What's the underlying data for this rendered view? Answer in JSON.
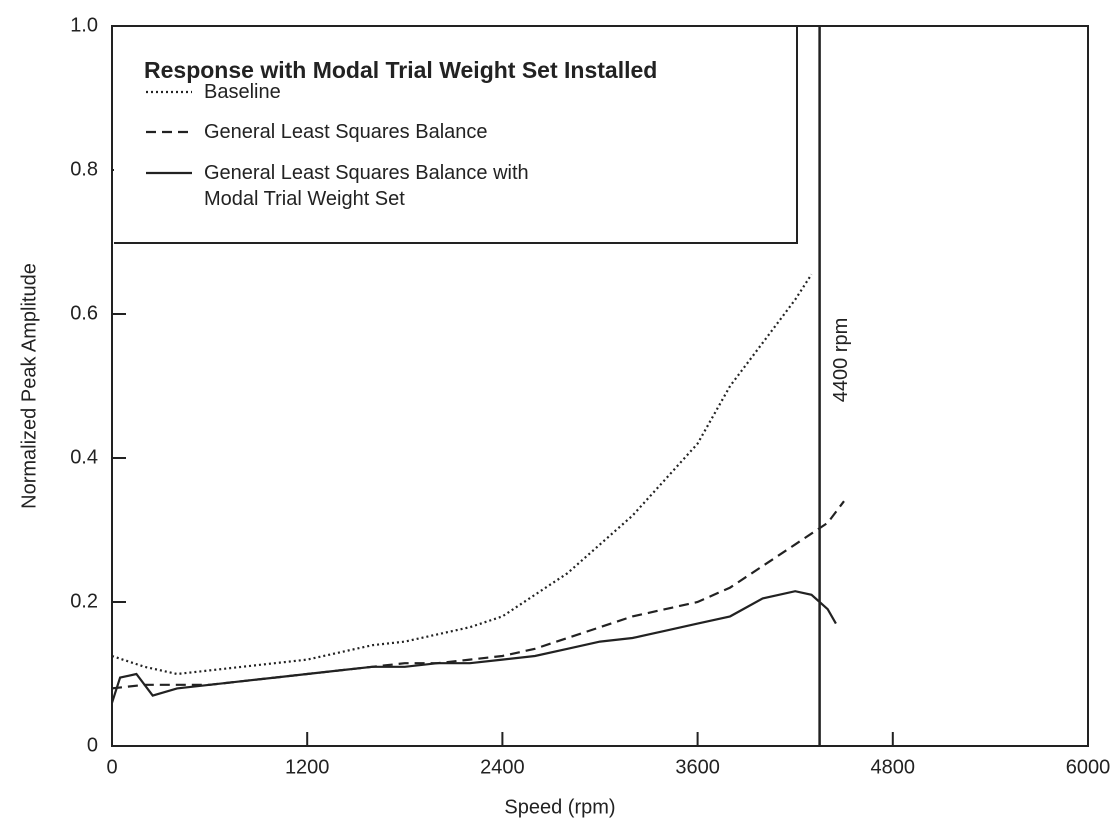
{
  "chart_data": {
    "type": "line",
    "legend_title": "Response with Modal Trial Weight Set Installed",
    "xlabel": "Speed (rpm)",
    "ylabel": "Normalized Peak Amplitude",
    "xlim": [
      0,
      6000
    ],
    "xticks": [
      0,
      1200,
      2400,
      3600,
      4800,
      6000
    ],
    "ylim": [
      0,
      1
    ],
    "yticks": [
      0,
      0.2,
      0.4,
      0.6,
      0.8,
      {
        "value": 1,
        "label": "1.0"
      }
    ],
    "annotation": {
      "x": 4350,
      "text": "4400 rpm"
    },
    "series": [
      {
        "name": "Baseline",
        "color": "#222222",
        "style": "dotted",
        "x": [
          0,
          200,
          400,
          600,
          800,
          1000,
          1200,
          1400,
          1600,
          1800,
          2000,
          2200,
          2400,
          2600,
          2800,
          3000,
          3200,
          3400,
          3600,
          3800,
          4000,
          4200,
          4300
        ],
        "values": [
          0.125,
          0.11,
          0.1,
          0.105,
          0.11,
          0.115,
          0.12,
          0.13,
          0.14,
          0.145,
          0.155,
          0.165,
          0.18,
          0.21,
          0.24,
          0.28,
          0.32,
          0.37,
          0.42,
          0.5,
          0.56,
          0.62,
          0.655
        ]
      },
      {
        "name": "General Least Squares Balance",
        "color": "#222222",
        "style": "dashed",
        "x": [
          0,
          200,
          400,
          600,
          800,
          1000,
          1200,
          1400,
          1600,
          1800,
          2000,
          2200,
          2400,
          2600,
          2800,
          3000,
          3200,
          3400,
          3600,
          3800,
          4000,
          4200,
          4400,
          4500
        ],
        "values": [
          0.08,
          0.085,
          0.085,
          0.085,
          0.09,
          0.095,
          0.1,
          0.105,
          0.11,
          0.115,
          0.115,
          0.12,
          0.125,
          0.135,
          0.15,
          0.165,
          0.18,
          0.19,
          0.2,
          0.22,
          0.25,
          0.28,
          0.31,
          0.34
        ]
      },
      {
        "name": "General Least Squares Balance with Modal Trial Weight Set",
        "color": "#222222",
        "style": "solid",
        "x": [
          0,
          50,
          150,
          250,
          400,
          600,
          800,
          1000,
          1200,
          1400,
          1600,
          1800,
          2000,
          2200,
          2400,
          2600,
          2800,
          3000,
          3200,
          3400,
          3600,
          3800,
          4000,
          4200,
          4300,
          4400,
          4450
        ],
        "values": [
          0.06,
          0.095,
          0.1,
          0.07,
          0.08,
          0.085,
          0.09,
          0.095,
          0.1,
          0.105,
          0.11,
          0.11,
          0.115,
          0.115,
          0.12,
          0.125,
          0.135,
          0.145,
          0.15,
          0.16,
          0.17,
          0.18,
          0.205,
          0.215,
          0.21,
          0.19,
          0.17
        ]
      }
    ]
  }
}
